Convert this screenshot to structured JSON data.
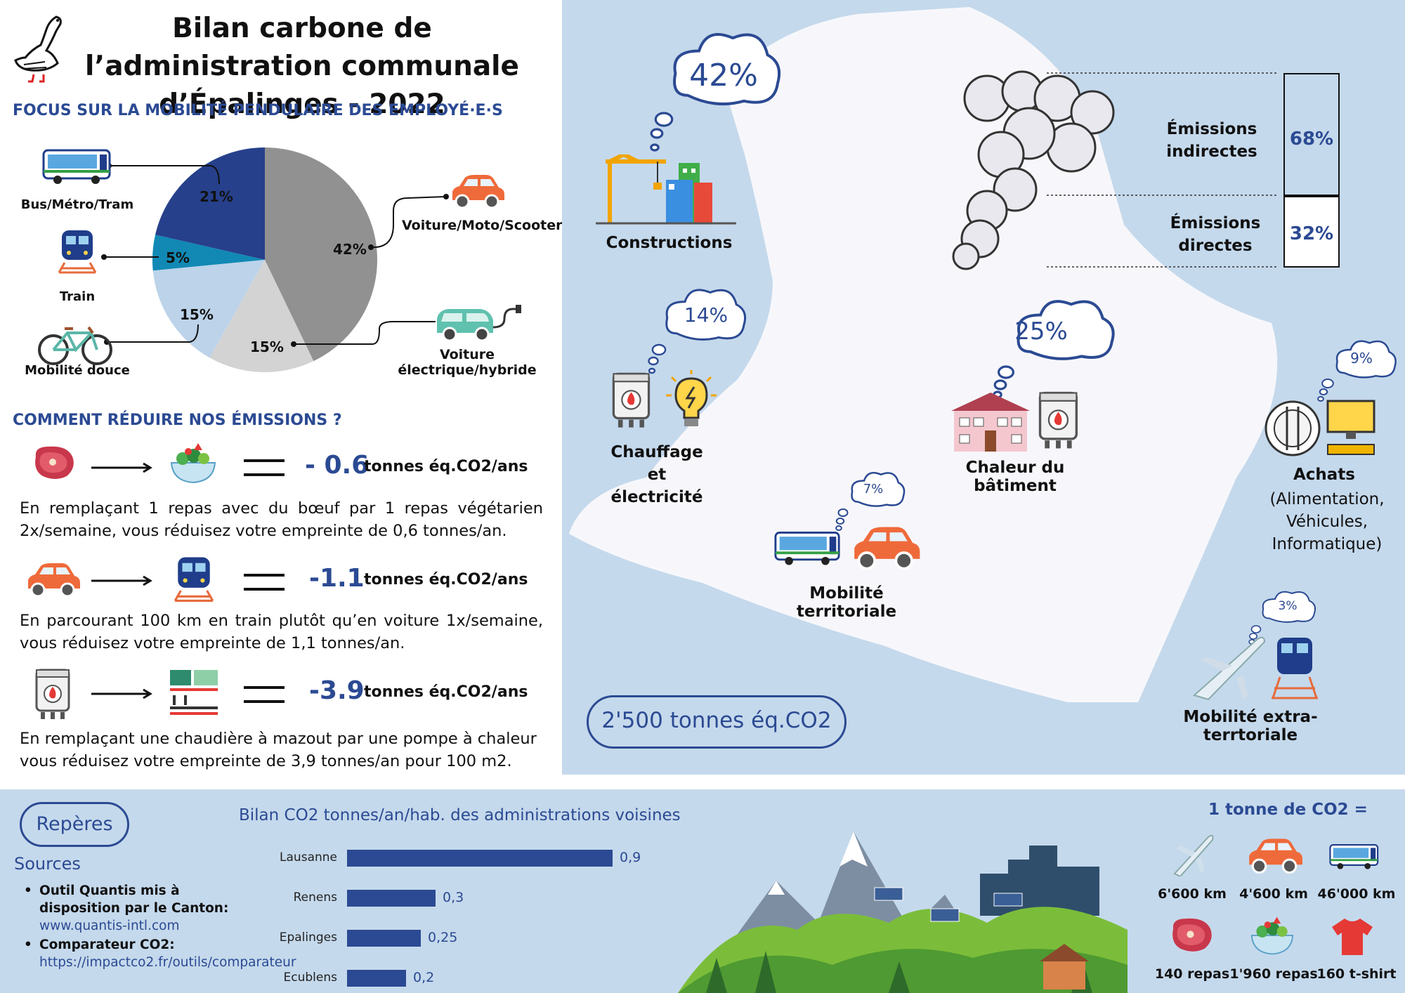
{
  "title": "Bilan carbone de l’administration communale d’Épalinges - 2022",
  "mobility": {
    "heading": "FOCUS SUR LA MOBILITÉ PENDULAIRE DES EMPLOYÉ·E·S",
    "modes": [
      {
        "label": "Bus/Métro/Tram",
        "pct": "21%",
        "value": 21,
        "color": "#26408b"
      },
      {
        "label": "Train",
        "pct": "5%",
        "value": 5,
        "color": "#1189b4"
      },
      {
        "label": "Mobilité douce",
        "pct": "15%",
        "value": 15,
        "color": "#bcd3ea"
      },
      {
        "label": "Voiture électrique/hybride",
        "pct": "15%",
        "value": 15,
        "color": "#d3d3d3"
      },
      {
        "label": "Voiture/Moto/Scooter",
        "pct": "42%",
        "value": 42,
        "color": "#919191"
      }
    ]
  },
  "reduce": {
    "heading": "COMMENT RÉDUIRE NOS ÉMISSIONS ?",
    "unit": "tonnes éq.CO2/ans",
    "items": [
      {
        "value": "- 0.6",
        "text": "En remplaçant 1 repas avec du bœuf par 1 repas végétarien 2x/semaine, vous réduisez votre empreinte de 0,6 tonnes/an.",
        "from_icon": "meat-icon",
        "to_icon": "salad-icon"
      },
      {
        "value": "-1.1",
        "text": "En parcourant 100 km en train plutôt qu’en voiture 1x/semaine, vous réduisez votre empreinte de 1,1 tonnes/an.",
        "from_icon": "car-icon",
        "to_icon": "train-icon"
      },
      {
        "value": "-3.9",
        "text": "En remplaçant une chaudière à mazout par une pompe à chaleur vous réduisez votre empreinte de 3,9 tonnes/an pour 100 m2.",
        "from_icon": "boiler-icon",
        "to_icon": "heat-pump-icon"
      }
    ]
  },
  "map": {
    "categories": [
      {
        "label": "Constructions",
        "pct": "42%"
      },
      {
        "label": "Chauffage et électricité",
        "pct": "14%"
      },
      {
        "label": "Chaleur du bâtiment",
        "pct": "25%"
      },
      {
        "label": "Mobilité territoriale",
        "pct": "7%"
      },
      {
        "label": "Achats",
        "sub": "(Alimentation, Véhicules, Informatique)",
        "pct": "9%"
      },
      {
        "label": "Mobilité extra-terrtoriale",
        "pct": "3%"
      }
    ],
    "emissions": [
      {
        "label": "Émissions indirectes",
        "pct": "68%",
        "value": 68
      },
      {
        "label": "Émissions directes",
        "pct": "32%",
        "value": 32
      }
    ],
    "total": "2'500 tonnes éq.CO2"
  },
  "bottom": {
    "reperes": "Repères",
    "sources_title": "Sources",
    "sources": [
      {
        "text": "Outil Quantis mis à disposition par le Canton:",
        "link": "www.quantis-intl.com"
      },
      {
        "text": "Comparateur CO2:",
        "link": "https://impactco2.fr/outils/comparateur"
      }
    ],
    "chart_title": "Bilan CO2 tonnes/an/hab. des administrations voisines",
    "equiv_title": "1 tonne de CO2 =",
    "equivalents": [
      {
        "label": "6'600 km",
        "icon": "plane-icon"
      },
      {
        "label": "4'600 km",
        "icon": "car-icon"
      },
      {
        "label": "46'000 km",
        "icon": "bus-icon"
      },
      {
        "label": "140 repas",
        "icon": "meat-icon"
      },
      {
        "label": "1'960 repas",
        "icon": "salad-icon"
      },
      {
        "label": "160 t-shirt",
        "icon": "tshirt-icon"
      }
    ]
  },
  "chart_data": {
    "type": "bar",
    "orientation": "horizontal",
    "title": "Bilan CO2 tonnes/an/hab. des administrations voisines",
    "categories": [
      "Lausanne",
      "Renens",
      "Epalinges",
      "Ecublens"
    ],
    "values": [
      0.9,
      0.3,
      0.25,
      0.2
    ],
    "value_labels": [
      "0,9",
      "0,3",
      "0,25",
      "0,2"
    ],
    "xlim": [
      0,
      1
    ],
    "grid": false
  }
}
